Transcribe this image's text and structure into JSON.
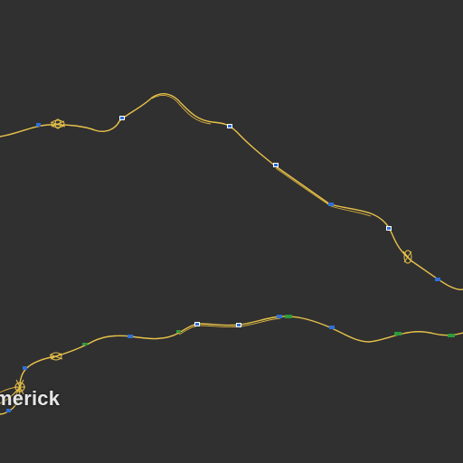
{
  "map": {
    "background_color": "#303030",
    "road_color": "#e8c24a",
    "places": [
      {
        "name": "merick"
      }
    ],
    "marker_colors": {
      "motorway_shield": "#2f6fd8",
      "national_shield": "#2e9a3c",
      "shield_text": "#ffffff"
    }
  }
}
